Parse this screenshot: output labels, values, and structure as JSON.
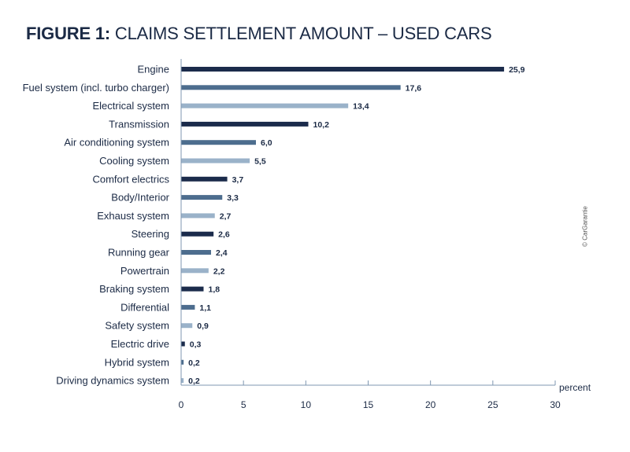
{
  "title": {
    "prefix": "FIGURE 1:",
    "text": "CLAIMS SETTLEMENT AMOUNT – USED CARS"
  },
  "credit": "© CarGarantie",
  "colors": {
    "dark": "#1b2b4b",
    "mid": "#4d6d8e",
    "light": "#9ab2c9",
    "axis": "#7f97b1",
    "text": "#1b2a45"
  },
  "chart_data": {
    "type": "bar",
    "orientation": "horizontal",
    "title": "FIGURE 1: CLAIMS SETTLEMENT AMOUNT – USED CARS",
    "categories": [
      "Engine",
      "Fuel system (incl. turbo charger)",
      "Electrical system",
      "Transmission",
      "Air conditioning system",
      "Cooling system",
      "Comfort electrics",
      "Body/Interior",
      "Exhaust system",
      "Steering",
      "Running gear",
      "Powertrain",
      "Braking system",
      "Differential",
      "Safety system",
      "Electric drive",
      "Hybrid system",
      "Driving dynamics system"
    ],
    "values": [
      25.9,
      17.6,
      13.4,
      10.2,
      6.0,
      5.5,
      3.7,
      3.3,
      2.7,
      2.6,
      2.4,
      2.2,
      1.8,
      1.1,
      0.9,
      0.3,
      0.2,
      0.2
    ],
    "value_labels": [
      "25,9",
      "17,6",
      "13,4",
      "10,2",
      "6,0",
      "5,5",
      "3,7",
      "3,3",
      "2,7",
      "2,6",
      "2,4",
      "2,2",
      "1,8",
      "1,1",
      "0,9",
      "0,3",
      "0,2",
      "0,2"
    ],
    "bar_colors": [
      "#1b2b4b",
      "#4d6d8e",
      "#9ab2c9",
      "#1b2b4b",
      "#4d6d8e",
      "#9ab2c9",
      "#1b2b4b",
      "#4d6d8e",
      "#9ab2c9",
      "#1b2b4b",
      "#4d6d8e",
      "#9ab2c9",
      "#1b2b4b",
      "#4d6d8e",
      "#9ab2c9",
      "#1b2b4b",
      "#4d6d8e",
      "#9ab2c9"
    ],
    "xlabel": "percent",
    "xlim": [
      0,
      30
    ],
    "xticks": [
      0,
      5,
      10,
      15,
      20,
      25,
      30
    ],
    "grid": false,
    "legend": "none"
  }
}
